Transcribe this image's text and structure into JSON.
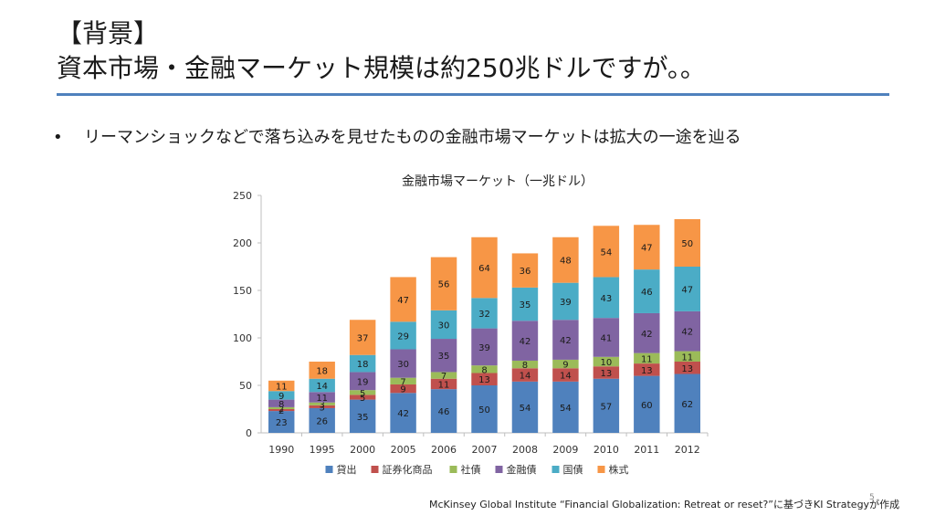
{
  "heading": {
    "line1": "【背景】",
    "line2": "資本市場・金融マーケット規模は約250兆ドルですが。。"
  },
  "bullet": {
    "symbol": "•",
    "text": "リーマンショックなどで落ち込みを見せたものの金融市場マーケットは拡大の一途を辿る"
  },
  "source": "McKinsey Global Institute “Financial Globalization: Retreat or reset?”に基づきKI Strategyが作成",
  "page_number": "5",
  "chart_data": {
    "type": "bar",
    "stacked": true,
    "title": "金融市場マーケット（一兆ドル）",
    "categories": [
      "1990",
      "1995",
      "2000",
      "2005",
      "2006",
      "2007",
      "2008",
      "2009",
      "2010",
      "2011",
      "2012"
    ],
    "series": [
      {
        "name": "貸出",
        "color": "#4f81bd",
        "values": [
          23,
          26,
          35,
          42,
          46,
          50,
          54,
          54,
          57,
          60,
          62
        ]
      },
      {
        "name": "証券化商品",
        "color": "#c0504d",
        "values": [
          2,
          3,
          5,
          9,
          11,
          13,
          14,
          14,
          13,
          13,
          13
        ]
      },
      {
        "name": "社債",
        "color": "#9bbb59",
        "values": [
          2,
          3,
          5,
          7,
          7,
          8,
          8,
          9,
          10,
          11,
          11
        ]
      },
      {
        "name": "金融債",
        "color": "#8064a2",
        "values": [
          8,
          11,
          19,
          30,
          35,
          39,
          42,
          42,
          41,
          42,
          42
        ]
      },
      {
        "name": "国債",
        "color": "#4bacc6",
        "values": [
          9,
          14,
          18,
          29,
          30,
          32,
          35,
          39,
          43,
          46,
          47
        ]
      },
      {
        "name": "株式",
        "color": "#f79646",
        "values": [
          11,
          18,
          37,
          47,
          56,
          64,
          36,
          48,
          54,
          47,
          50
        ]
      }
    ],
    "ylim": [
      0,
      250
    ],
    "yticks": [
      0,
      50,
      100,
      150,
      200,
      250
    ],
    "grid": false,
    "legend": "bottom"
  }
}
